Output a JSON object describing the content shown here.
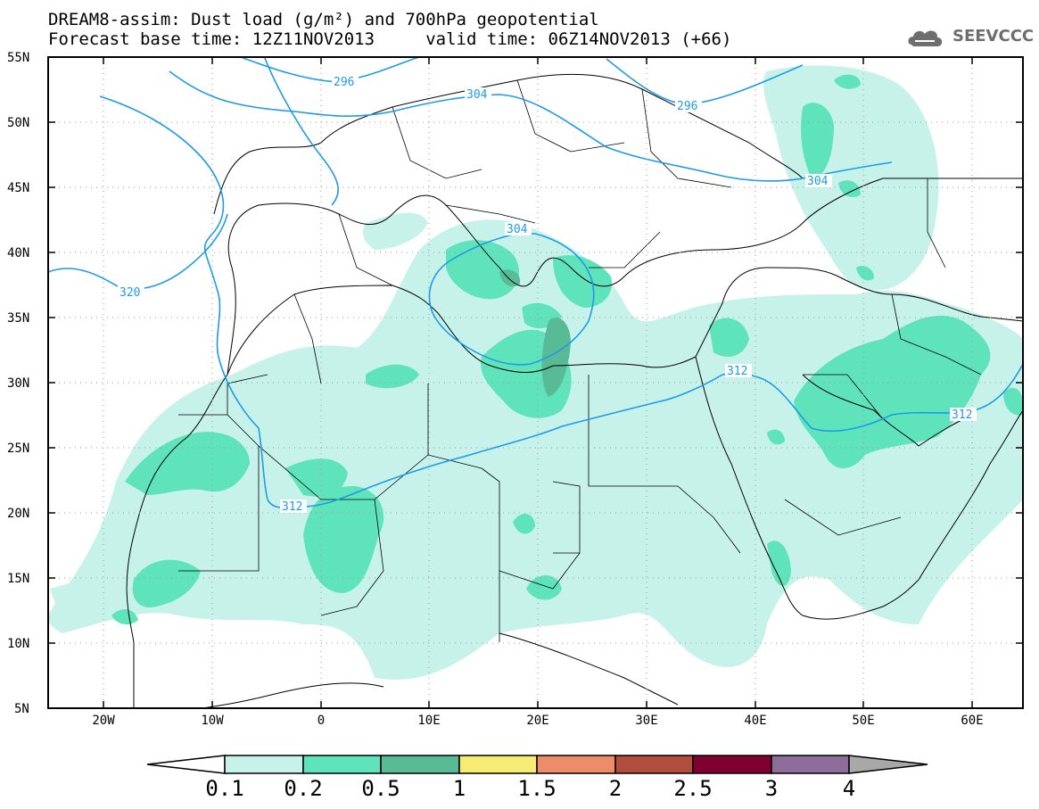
{
  "title_line1": "DREAM8-assim: Dust load (g/m²) and 700hPa geopotential",
  "title_line2": "Forecast base time: 12Z11NOV2013     valid time: 06Z14NOV2013 (+66)",
  "logo_text": "SEEVCCC",
  "latitude_labels": [
    "55N",
    "50N",
    "45N",
    "40N",
    "35N",
    "30N",
    "25N",
    "20N",
    "15N",
    "10N",
    "5N"
  ],
  "longitude_labels": [
    "20W",
    "10W",
    "0",
    "10E",
    "20E",
    "30E",
    "40E",
    "50E",
    "60E"
  ],
  "contour_labels": [
    "296",
    "304",
    "296",
    "304",
    "304",
    "320",
    "312",
    "312",
    "312"
  ],
  "colorbar": {
    "labels": [
      "0.1",
      "0.2",
      "0.5",
      "1",
      "1.5",
      "2",
      "2.5",
      "3",
      "4"
    ],
    "colors": [
      "#ffffff",
      "#c6f2ea",
      "#5fe3bb",
      "#58bb96",
      "#f6ec74",
      "#ec8c68",
      "#b24d3e",
      "#800030",
      "#8f6d9b",
      "#a8a8a8"
    ]
  },
  "colors": {
    "dust_light": "#c6f2ea",
    "dust_medium": "#5fe3bb",
    "dust_dark": "#58bb96",
    "geopotential_line": "#1e9be8",
    "coastline": "#000000"
  }
}
